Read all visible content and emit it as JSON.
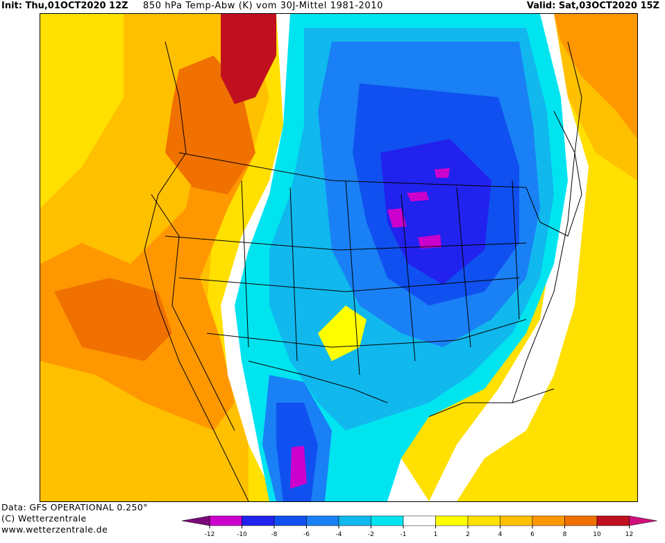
{
  "header": {
    "init": "Init: Thu,01OCT2020 12Z",
    "title": "850 hPa Temp-Abw (K) vom 30J-Mittel 1981-2010",
    "valid": "Valid: Sat,03OCT2020 15Z"
  },
  "footer": {
    "data_line": "Data: GFS OPERATIONAL 0.250°",
    "copyright_line": "(C) Wetterzentrale",
    "url_line": "www.wetterzentrale.de"
  },
  "legend": {
    "ticks": [
      "-12",
      "-10",
      "-8",
      "-6",
      "-4",
      "-2",
      "-1",
      "1",
      "2",
      "4",
      "6",
      "8",
      "10",
      "12"
    ],
    "colors": [
      "#cc00cc",
      "#2222ee",
      "#1050f0",
      "#1a80f5",
      "#10b8ee",
      "#00e4f0",
      "#ffffff",
      "#ffff00",
      "#ffe000",
      "#ffc000",
      "#ff9800",
      "#f07000",
      "#c01020"
    ],
    "low_arrow_color": "#7a0a7a",
    "high_arrow_color": "#d0107a"
  }
}
